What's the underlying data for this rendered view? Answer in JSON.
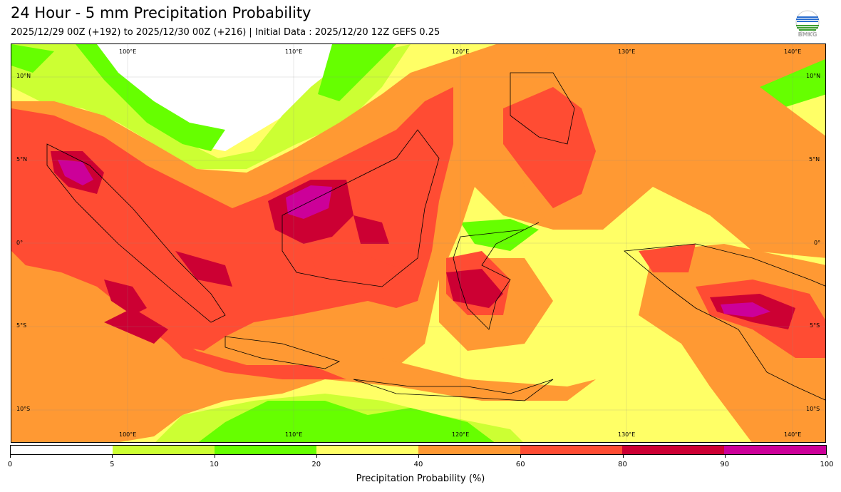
{
  "header": {
    "title": "24 Hour - 5 mm Precipitation Probability",
    "subtitle": "2025/12/29 00Z (+192) to 2025/12/30 00Z (+216) | Initial Data : 2025/12/20 12Z GEFS 0.25",
    "logo_text": "BMKG"
  },
  "map": {
    "lon_labels": [
      "100°E",
      "110°E",
      "120°E",
      "130°E",
      "140°E"
    ],
    "lat_labels": [
      "10°N",
      "5°N",
      "0°",
      "5°S",
      "10°S"
    ]
  },
  "colorbar": {
    "label": "Precipitation Probability (%)",
    "ticks": [
      "0",
      "5",
      "10",
      "20",
      "40",
      "60",
      "80",
      "90",
      "100"
    ],
    "colors": [
      "#ffffff",
      "#ccff33",
      "#66ff00",
      "#ffff66",
      "#ff9933",
      "#ff4c33",
      "#cc0033",
      "#cc0099"
    ]
  }
}
